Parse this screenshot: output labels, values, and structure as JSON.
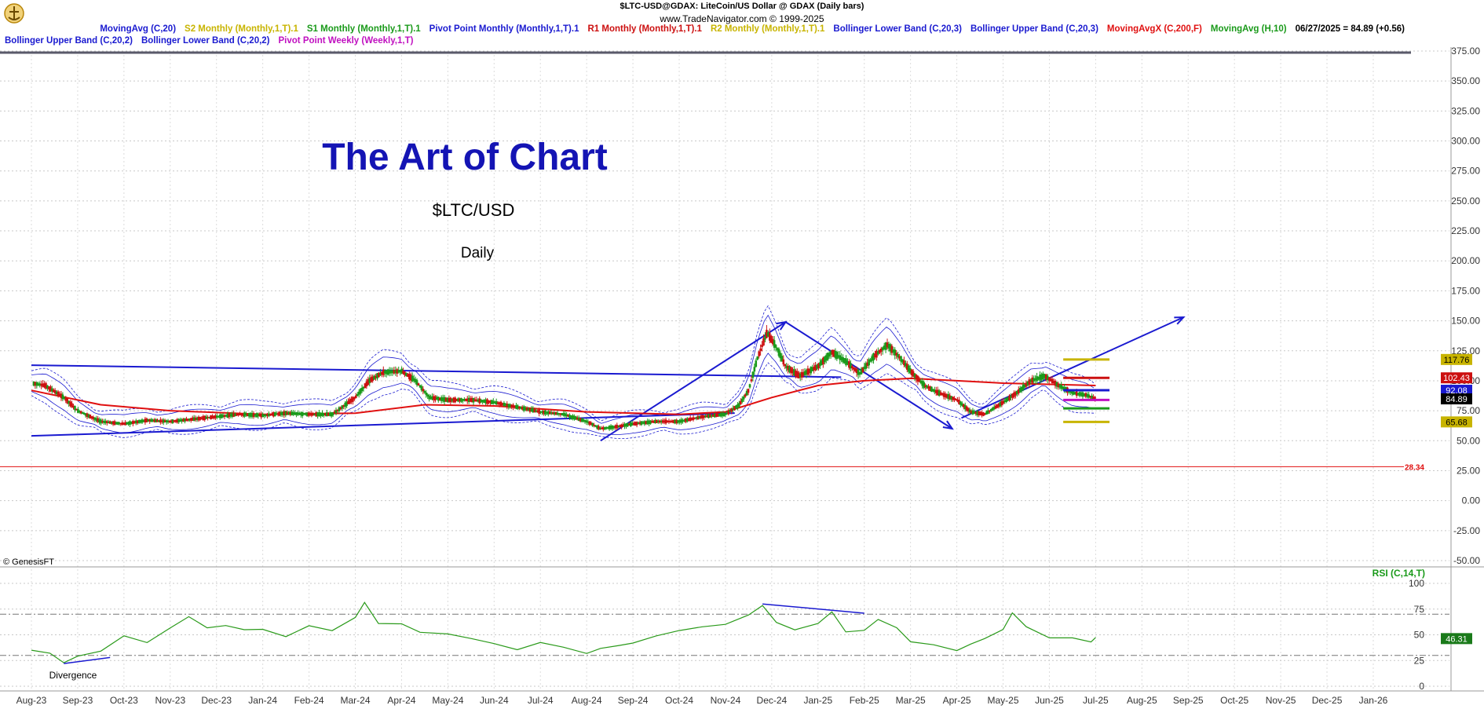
{
  "header": {
    "title": "$LTC-USD@GDAX:  LiteCoin/US Dollar @ GDAX  (Daily bars)",
    "copyright": "www.TradeNavigator.com © 1999-2025"
  },
  "legend_row1": [
    {
      "label": "MovingAvg (C,20)",
      "color": "#1a1ad0"
    },
    {
      "label": "S2 Monthly (Monthly,1,T).1",
      "color": "#c8b400"
    },
    {
      "label": "S1 Monthly (Monthly,1,T).1",
      "color": "#1a9a1a"
    },
    {
      "label": "Pivot Point Monthly (Monthly,1,T).1",
      "color": "#1a1ad0"
    },
    {
      "label": "R1 Monthly (Monthly,1,T).1",
      "color": "#cc1010"
    },
    {
      "label": "R2 Monthly (Monthly,1,T).1",
      "color": "#c8b400"
    },
    {
      "label": "Bollinger Lower Band (C,20,3)",
      "color": "#1a1ad0"
    },
    {
      "label": "Bollinger Upper Band (C,20,3)",
      "color": "#1a1ad0"
    },
    {
      "label": "MovingAvgX (C,200,F)",
      "color": "#e01010"
    },
    {
      "label": "MovingAvg (H,10)",
      "color": "#1a9a1a"
    },
    {
      "label": "06/27/2025 = 84.89 (+0.56)",
      "color": "#000000"
    }
  ],
  "legend_row2": [
    {
      "label": "Bollinger Upper Band (C,20,2)",
      "color": "#1a1ad0"
    },
    {
      "label": "Bollinger Lower Band (C,20,2)",
      "color": "#1a1ad0"
    },
    {
      "label": "Pivot Point Weekly (Weekly,1,T)",
      "color": "#c010c0"
    }
  ],
  "annotations": {
    "title": "The Art of Chart",
    "symbol": "$LTC/USD",
    "period": "Daily",
    "divergence": "Divergence",
    "credit": "© GenesisFT",
    "rsi_label": "RSI (C,14,T)"
  },
  "colors": {
    "title": "#1414b4",
    "trend": "#1a1ad0",
    "ma200": "#e01010",
    "rsi": "#2a9a1a",
    "up_candle": "#1a9a1a",
    "down_candle": "#cc1010",
    "pivot_yellow": "#c8b400"
  },
  "chart_data": {
    "type": "candlestick",
    "price_axis": {
      "ticks": [
        375,
        350,
        325,
        300,
        275,
        250,
        225,
        200,
        175,
        150,
        125,
        100,
        75,
        50,
        25,
        0,
        -25,
        -50
      ],
      "labels": [
        "375.00",
        "350.00",
        "325.00",
        "300.00",
        "275.00",
        "250.00",
        "225.00",
        "200.00",
        "175.00",
        "150.00",
        "125.00",
        "100.00",
        "75.00",
        "50.00",
        "25.00",
        "0.00",
        "-25.00",
        "-50.00"
      ],
      "range": [
        -50,
        375
      ]
    },
    "rsi_axis": {
      "ticks": [
        100,
        75,
        50,
        25,
        0
      ],
      "labels": [
        "100",
        "75",
        "50",
        "25",
        "0"
      ],
      "range": [
        0,
        100
      ],
      "guides": [
        70,
        30
      ]
    },
    "x_axis": {
      "labels": [
        "Aug-23",
        "Sep-23",
        "Oct-23",
        "Nov-23",
        "Dec-23",
        "Jan-24",
        "Feb-24",
        "Mar-24",
        "Apr-24",
        "May-24",
        "Jun-24",
        "Jul-24",
        "Aug-24",
        "Sep-24",
        "Oct-24",
        "Nov-24",
        "Dec-24",
        "Jan-25",
        "Feb-25",
        "Mar-25",
        "Apr-25",
        "May-25",
        "Jun-25",
        "Jul-25",
        "Aug-25",
        "Sep-25",
        "Oct-25",
        "Nov-25",
        "Dec-25",
        "Jan-26"
      ],
      "range": [
        0,
        29.9
      ]
    },
    "price_path": [
      [
        0.0,
        98
      ],
      [
        0.3,
        96
      ],
      [
        0.7,
        86
      ],
      [
        1.0,
        75
      ],
      [
        1.5,
        66
      ],
      [
        2.0,
        64
      ],
      [
        2.5,
        67
      ],
      [
        3.0,
        66
      ],
      [
        3.5,
        68
      ],
      [
        4.0,
        70
      ],
      [
        4.5,
        72
      ],
      [
        5.0,
        71
      ],
      [
        5.5,
        73
      ],
      [
        6.0,
        72
      ],
      [
        6.5,
        72
      ],
      [
        7.0,
        86
      ],
      [
        7.3,
        100
      ],
      [
        7.6,
        107
      ],
      [
        8.0,
        108
      ],
      [
        8.3,
        100
      ],
      [
        8.6,
        86
      ],
      [
        9.0,
        84
      ],
      [
        9.5,
        84
      ],
      [
        10.0,
        82
      ],
      [
        10.5,
        78
      ],
      [
        11.0,
        74
      ],
      [
        11.5,
        72
      ],
      [
        12.0,
        66
      ],
      [
        12.3,
        60
      ],
      [
        12.7,
        62
      ],
      [
        13.0,
        64
      ],
      [
        13.5,
        66
      ],
      [
        14.0,
        66
      ],
      [
        14.5,
        70
      ],
      [
        15.0,
        72
      ],
      [
        15.3,
        80
      ],
      [
        15.5,
        92
      ],
      [
        15.7,
        120
      ],
      [
        15.9,
        140
      ],
      [
        16.1,
        128
      ],
      [
        16.3,
        112
      ],
      [
        16.6,
        104
      ],
      [
        17.0,
        112
      ],
      [
        17.3,
        124
      ],
      [
        17.6,
        116
      ],
      [
        17.9,
        106
      ],
      [
        18.2,
        120
      ],
      [
        18.5,
        130
      ],
      [
        18.8,
        118
      ],
      [
        19.0,
        108
      ],
      [
        19.3,
        96
      ],
      [
        19.6,
        90
      ],
      [
        20.0,
        84
      ],
      [
        20.3,
        74
      ],
      [
        20.6,
        72
      ],
      [
        21.0,
        82
      ],
      [
        21.3,
        90
      ],
      [
        21.6,
        100
      ],
      [
        21.9,
        104
      ],
      [
        22.2,
        96
      ],
      [
        22.5,
        90
      ],
      [
        22.8,
        88
      ],
      [
        23.0,
        85
      ]
    ],
    "moving_avg_200": [
      [
        0.0,
        92
      ],
      [
        1.5,
        80
      ],
      [
        3.0,
        75
      ],
      [
        5.0,
        72
      ],
      [
        7.0,
        73
      ],
      [
        8.5,
        80
      ],
      [
        10.0,
        79
      ],
      [
        12.0,
        74
      ],
      [
        14.0,
        72
      ],
      [
        15.0,
        74
      ],
      [
        16.0,
        86
      ],
      [
        17.0,
        96
      ],
      [
        18.0,
        100
      ],
      [
        19.0,
        102
      ],
      [
        20.0,
        100
      ],
      [
        21.0,
        98
      ],
      [
        22.0,
        97
      ],
      [
        23.0,
        96
      ]
    ],
    "trend_lines": [
      {
        "from": [
          0.0,
          113
        ],
        "to": [
          17.5,
          103
        ]
      },
      {
        "from": [
          0.0,
          54
        ],
        "to": [
          15.2,
          73
        ]
      },
      {
        "from": [
          12.3,
          50
        ],
        "to": [
          16.3,
          149
        ]
      },
      {
        "from": [
          16.3,
          149
        ],
        "to": [
          19.9,
          60
        ]
      },
      {
        "from": [
          20.1,
          69
        ],
        "to": [
          24.9,
          153
        ]
      }
    ],
    "pivot_levels": [
      {
        "name": "R2 Monthly",
        "value": 117.76
      },
      {
        "name": "R1 Monthly",
        "value": 102.43
      },
      {
        "name": "Pivot Point Monthly",
        "value": 92.08
      },
      {
        "name": "Pivot Point Weekly",
        "value": 84.0
      },
      {
        "name": "S1 Monthly",
        "value": 77.0
      },
      {
        "name": "S2 Monthly",
        "value": 65.68
      }
    ],
    "price_labels": [
      {
        "text": "117.76",
        "value": 117.76,
        "bg": "#c8b400"
      },
      {
        "text": "102.43",
        "value": 102.43,
        "bg": "#cc1010"
      },
      {
        "text": "92.08",
        "value": 92.08,
        "bg": "#1a1ad0"
      },
      {
        "text": "84.89",
        "value": 84.89,
        "bg": "#000000"
      },
      {
        "text": "65.68",
        "value": 65.68,
        "bg": "#c8b400"
      }
    ],
    "horizontal_line": {
      "value": 28.34,
      "label": "28.34",
      "color": "#e01010"
    },
    "rsi_path": [
      [
        0.0,
        35
      ],
      [
        0.4,
        33
      ],
      [
        0.7,
        22
      ],
      [
        1.0,
        27
      ],
      [
        1.5,
        35
      ],
      [
        2.0,
        52
      ],
      [
        2.5,
        44
      ],
      [
        3.0,
        55
      ],
      [
        3.4,
        70
      ],
      [
        3.8,
        54
      ],
      [
        4.2,
        62
      ],
      [
        4.6,
        52
      ],
      [
        5.0,
        58
      ],
      [
        5.5,
        48
      ],
      [
        6.0,
        56
      ],
      [
        6.5,
        52
      ],
      [
        7.0,
        68
      ],
      [
        7.2,
        84
      ],
      [
        7.5,
        64
      ],
      [
        8.0,
        62
      ],
      [
        8.4,
        52
      ],
      [
        9.0,
        48
      ],
      [
        9.5,
        46
      ],
      [
        10.0,
        44
      ],
      [
        10.5,
        38
      ],
      [
        11.0,
        42
      ],
      [
        11.5,
        35
      ],
      [
        12.0,
        30
      ],
      [
        12.3,
        34
      ],
      [
        12.7,
        42
      ],
      [
        13.0,
        45
      ],
      [
        13.5,
        50
      ],
      [
        14.0,
        52
      ],
      [
        14.5,
        55
      ],
      [
        15.0,
        60
      ],
      [
        15.5,
        72
      ],
      [
        15.8,
        80
      ],
      [
        16.1,
        62
      ],
      [
        16.5,
        54
      ],
      [
        17.0,
        58
      ],
      [
        17.3,
        70
      ],
      [
        17.6,
        52
      ],
      [
        18.0,
        56
      ],
      [
        18.3,
        65
      ],
      [
        18.7,
        56
      ],
      [
        19.0,
        44
      ],
      [
        19.5,
        38
      ],
      [
        20.0,
        32
      ],
      [
        20.3,
        38
      ],
      [
        20.6,
        44
      ],
      [
        21.0,
        58
      ],
      [
        21.2,
        72
      ],
      [
        21.5,
        60
      ],
      [
        22.0,
        46
      ],
      [
        22.5,
        44
      ],
      [
        22.9,
        46
      ],
      [
        23.0,
        46
      ]
    ],
    "rsi_trendlines": [
      {
        "from": [
          0.7,
          22
        ],
        "to": [
          1.7,
          28
        ]
      },
      {
        "from": [
          15.8,
          80
        ],
        "to": [
          18.0,
          71
        ]
      }
    ],
    "rsi_last": {
      "text": "46.31",
      "value": 46.31
    }
  }
}
